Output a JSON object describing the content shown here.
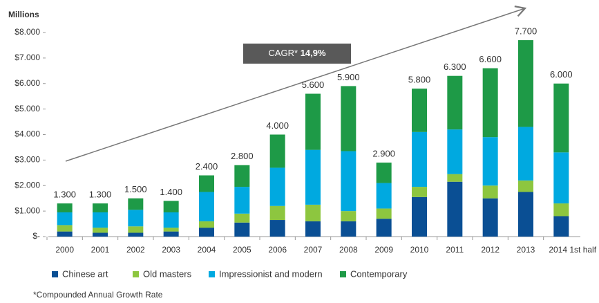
{
  "chart_data": {
    "type": "stacked_bar",
    "y_label": "Millions",
    "annotation": "CAGR*",
    "annotation_value": "14,9%",
    "footnote": "*Compounded Annual Growth Rate",
    "categories": [
      "2000",
      "2001",
      "2002",
      "2003",
      "2004",
      "2005",
      "2006",
      "2007",
      "2008",
      "2009",
      "2010",
      "2011",
      "2012",
      "2013",
      "2014 1st half"
    ],
    "series": [
      {
        "name": "Chinese art",
        "color": "#0a4f94",
        "values": [
          200,
          150,
          150,
          200,
          350,
          550,
          650,
          600,
          600,
          700,
          1550,
          2150,
          1500,
          1750,
          800
        ]
      },
      {
        "name": "Old masters",
        "color": "#8dc63f",
        "values": [
          250,
          200,
          250,
          150,
          250,
          350,
          550,
          650,
          400,
          400,
          400,
          300,
          500,
          450,
          500
        ]
      },
      {
        "name": "Impressionist and modern",
        "color": "#00a9e0",
        "values": [
          500,
          600,
          650,
          600,
          1150,
          1050,
          1500,
          2150,
          2350,
          1000,
          2150,
          1750,
          1900,
          2100,
          2000
        ]
      },
      {
        "name": "Contemporary",
        "color": "#1e9a47",
        "values": [
          350,
          350,
          450,
          450,
          650,
          850,
          1300,
          2200,
          2550,
          800,
          1700,
          2100,
          2700,
          3400,
          2700
        ]
      }
    ],
    "totals": [
      1300,
      1300,
      1500,
      1400,
      2400,
      2800,
      4000,
      5600,
      5900,
      2900,
      5800,
      6300,
      6600,
      7700,
      6000
    ],
    "value_labels": [
      "1.300",
      "1.300",
      "1.500",
      "1.400",
      "2.400",
      "2.800",
      "4.000",
      "5.600",
      "5.900",
      "2.900",
      "5.800",
      "6.300",
      "6.600",
      "7.700",
      "6.000"
    ],
    "ylim": [
      0,
      8000
    ],
    "yticks": [
      {
        "value": 0,
        "label": "$-"
      },
      {
        "value": 1000,
        "label": "$1.000"
      },
      {
        "value": 2000,
        "label": "$2.000"
      },
      {
        "value": 3000,
        "label": "$3.000"
      },
      {
        "value": 4000,
        "label": "$4.000"
      },
      {
        "value": 5000,
        "label": "$5.000"
      },
      {
        "value": 6000,
        "label": "$6.000"
      },
      {
        "value": 7000,
        "label": "$7.000"
      },
      {
        "value": 8000,
        "label": "$8.000"
      }
    ],
    "grid": false
  }
}
